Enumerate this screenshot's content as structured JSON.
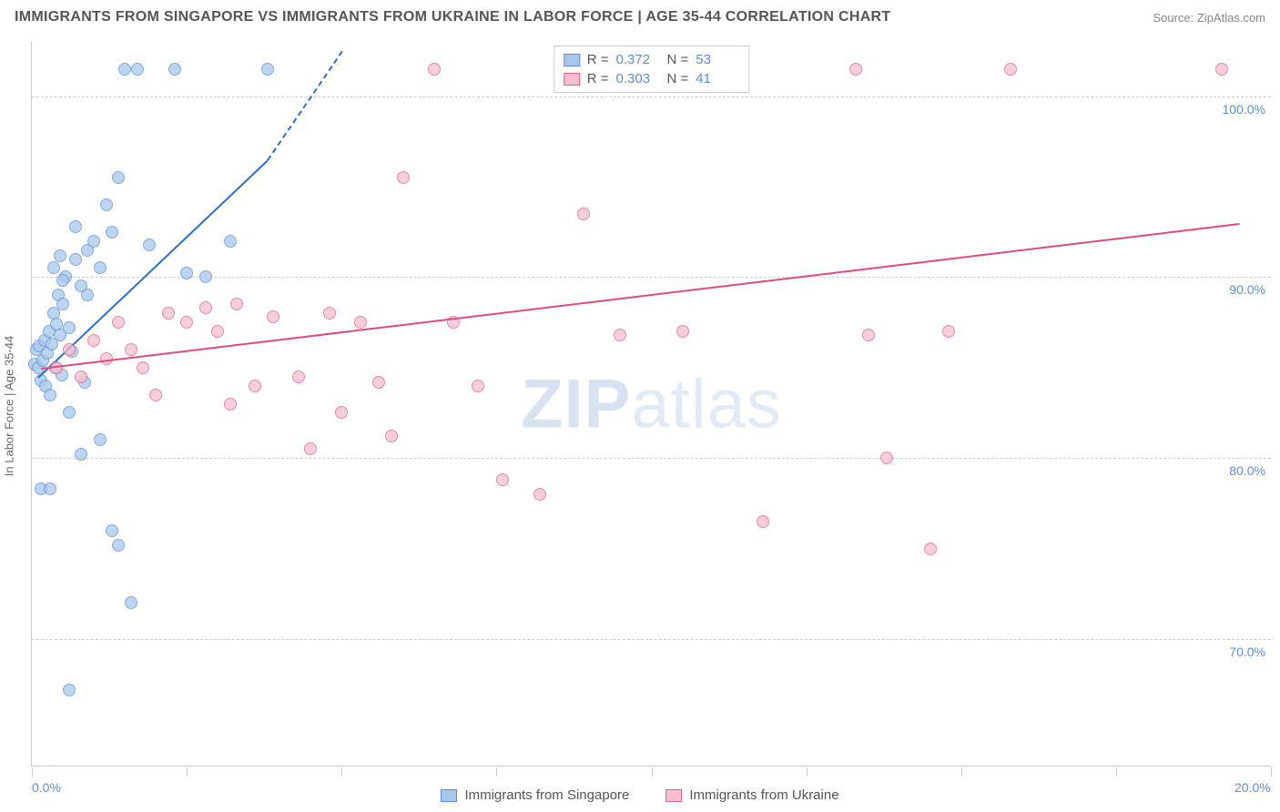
{
  "title": "IMMIGRANTS FROM SINGAPORE VS IMMIGRANTS FROM UKRAINE IN LABOR FORCE | AGE 35-44 CORRELATION CHART",
  "source": "Source: ZipAtlas.com",
  "y_axis_title": "In Labor Force | Age 35-44",
  "watermark_a": "ZIP",
  "watermark_b": "atlas",
  "chart": {
    "type": "scatter",
    "background_color": "#ffffff",
    "grid_color": "#cccccc",
    "grid_dash": "4,4",
    "xlim": [
      0,
      20
    ],
    "ylim": [
      63,
      103
    ],
    "x_ticks": [
      0,
      2.5,
      5,
      7.5,
      10,
      12.5,
      15,
      17.5,
      20
    ],
    "x_labels": [
      {
        "v": 0,
        "t": "0.0%"
      },
      {
        "v": 20,
        "t": "20.0%"
      }
    ],
    "y_gridlines": [
      70,
      80,
      90,
      100
    ],
    "y_labels": [
      {
        "v": 70,
        "t": "70.0%"
      },
      {
        "v": 80,
        "t": "80.0%"
      },
      {
        "v": 90,
        "t": "90.0%"
      },
      {
        "v": 100,
        "t": "100.0%"
      }
    ],
    "marker_radius": 7,
    "marker_border_width": 1,
    "marker_fill_opacity": 0.35,
    "series": [
      {
        "name": "Immigrants from Singapore",
        "color_border": "#5b8fd6",
        "color_fill": "#a9c7ec",
        "trend_color": "#2f6fc9",
        "trend": {
          "x1": 0.1,
          "y1": 84.5,
          "x2": 3.8,
          "y2": 96.5,
          "dash_extend_to": [
            5.0,
            102.5
          ]
        },
        "stats": {
          "R_label": "R =",
          "R": "0.372",
          "N_label": "N =",
          "N": "53"
        },
        "points": [
          [
            0.05,
            85.2
          ],
          [
            0.07,
            86.0
          ],
          [
            0.1,
            85.0
          ],
          [
            0.12,
            86.2
          ],
          [
            0.15,
            84.3
          ],
          [
            0.18,
            85.4
          ],
          [
            0.2,
            86.5
          ],
          [
            0.22,
            84.0
          ],
          [
            0.25,
            85.8
          ],
          [
            0.28,
            87.0
          ],
          [
            0.3,
            83.5
          ],
          [
            0.32,
            86.3
          ],
          [
            0.35,
            88.0
          ],
          [
            0.38,
            85.0
          ],
          [
            0.4,
            87.4
          ],
          [
            0.43,
            89.0
          ],
          [
            0.45,
            86.8
          ],
          [
            0.48,
            84.6
          ],
          [
            0.5,
            88.5
          ],
          [
            0.55,
            90.0
          ],
          [
            0.6,
            87.2
          ],
          [
            0.65,
            85.9
          ],
          [
            0.7,
            91.0
          ],
          [
            0.8,
            89.5
          ],
          [
            0.9,
            91.5
          ],
          [
            1.0,
            92.0
          ],
          [
            1.1,
            90.5
          ],
          [
            1.2,
            94.0
          ],
          [
            1.3,
            92.5
          ],
          [
            1.4,
            95.5
          ],
          [
            1.5,
            101.5
          ],
          [
            1.7,
            101.5
          ],
          [
            1.9,
            91.8
          ],
          [
            2.3,
            101.5
          ],
          [
            2.5,
            90.2
          ],
          [
            2.8,
            90.0
          ],
          [
            3.2,
            92.0
          ],
          [
            3.8,
            101.5
          ],
          [
            0.15,
            78.3
          ],
          [
            0.3,
            78.3
          ],
          [
            0.6,
            82.5
          ],
          [
            0.8,
            80.2
          ],
          [
            0.85,
            84.2
          ],
          [
            1.1,
            81.0
          ],
          [
            1.3,
            76.0
          ],
          [
            1.4,
            75.2
          ],
          [
            1.6,
            72.0
          ],
          [
            0.6,
            67.2
          ],
          [
            0.35,
            90.5
          ],
          [
            0.45,
            91.2
          ],
          [
            0.5,
            89.8
          ],
          [
            0.7,
            92.8
          ],
          [
            0.9,
            89.0
          ]
        ]
      },
      {
        "name": "Immigrants from Ukraine",
        "color_border": "#e85f8a",
        "color_fill": "#f5bfd0",
        "trend_color": "#e14a7a",
        "trend": {
          "x1": 0.15,
          "y1": 85.0,
          "x2": 19.5,
          "y2": 93.0
        },
        "stats": {
          "R_label": "R =",
          "R": "0.303",
          "N_label": "N =",
          "N": "41"
        },
        "points": [
          [
            0.4,
            85.0
          ],
          [
            0.6,
            86.0
          ],
          [
            0.8,
            84.5
          ],
          [
            1.0,
            86.5
          ],
          [
            1.2,
            85.5
          ],
          [
            1.4,
            87.5
          ],
          [
            1.6,
            86.0
          ],
          [
            1.8,
            85.0
          ],
          [
            2.0,
            83.5
          ],
          [
            2.2,
            88.0
          ],
          [
            2.5,
            87.5
          ],
          [
            2.8,
            88.3
          ],
          [
            3.0,
            87.0
          ],
          [
            3.3,
            88.5
          ],
          [
            3.6,
            84.0
          ],
          [
            3.9,
            87.8
          ],
          [
            4.3,
            84.5
          ],
          [
            4.8,
            88.0
          ],
          [
            5.0,
            82.5
          ],
          [
            5.3,
            87.5
          ],
          [
            5.6,
            84.2
          ],
          [
            5.8,
            81.2
          ],
          [
            6.0,
            95.5
          ],
          [
            6.5,
            101.5
          ],
          [
            6.8,
            87.5
          ],
          [
            7.2,
            84.0
          ],
          [
            7.6,
            78.8
          ],
          [
            8.2,
            78.0
          ],
          [
            8.9,
            93.5
          ],
          [
            9.5,
            86.8
          ],
          [
            10.5,
            87.0
          ],
          [
            11.8,
            76.5
          ],
          [
            13.3,
            101.5
          ],
          [
            13.5,
            86.8
          ],
          [
            13.8,
            80.0
          ],
          [
            14.5,
            75.0
          ],
          [
            14.8,
            87.0
          ],
          [
            15.8,
            101.5
          ],
          [
            19.2,
            101.5
          ],
          [
            4.5,
            80.5
          ],
          [
            3.2,
            83.0
          ]
        ]
      }
    ]
  },
  "bottom_legend": [
    {
      "label": "Immigrants from Singapore",
      "fill": "#a9c7ec",
      "border": "#5b8fd6"
    },
    {
      "label": "Immigrants from Ukraine",
      "fill": "#f5bfd0",
      "border": "#e85f8a"
    }
  ]
}
